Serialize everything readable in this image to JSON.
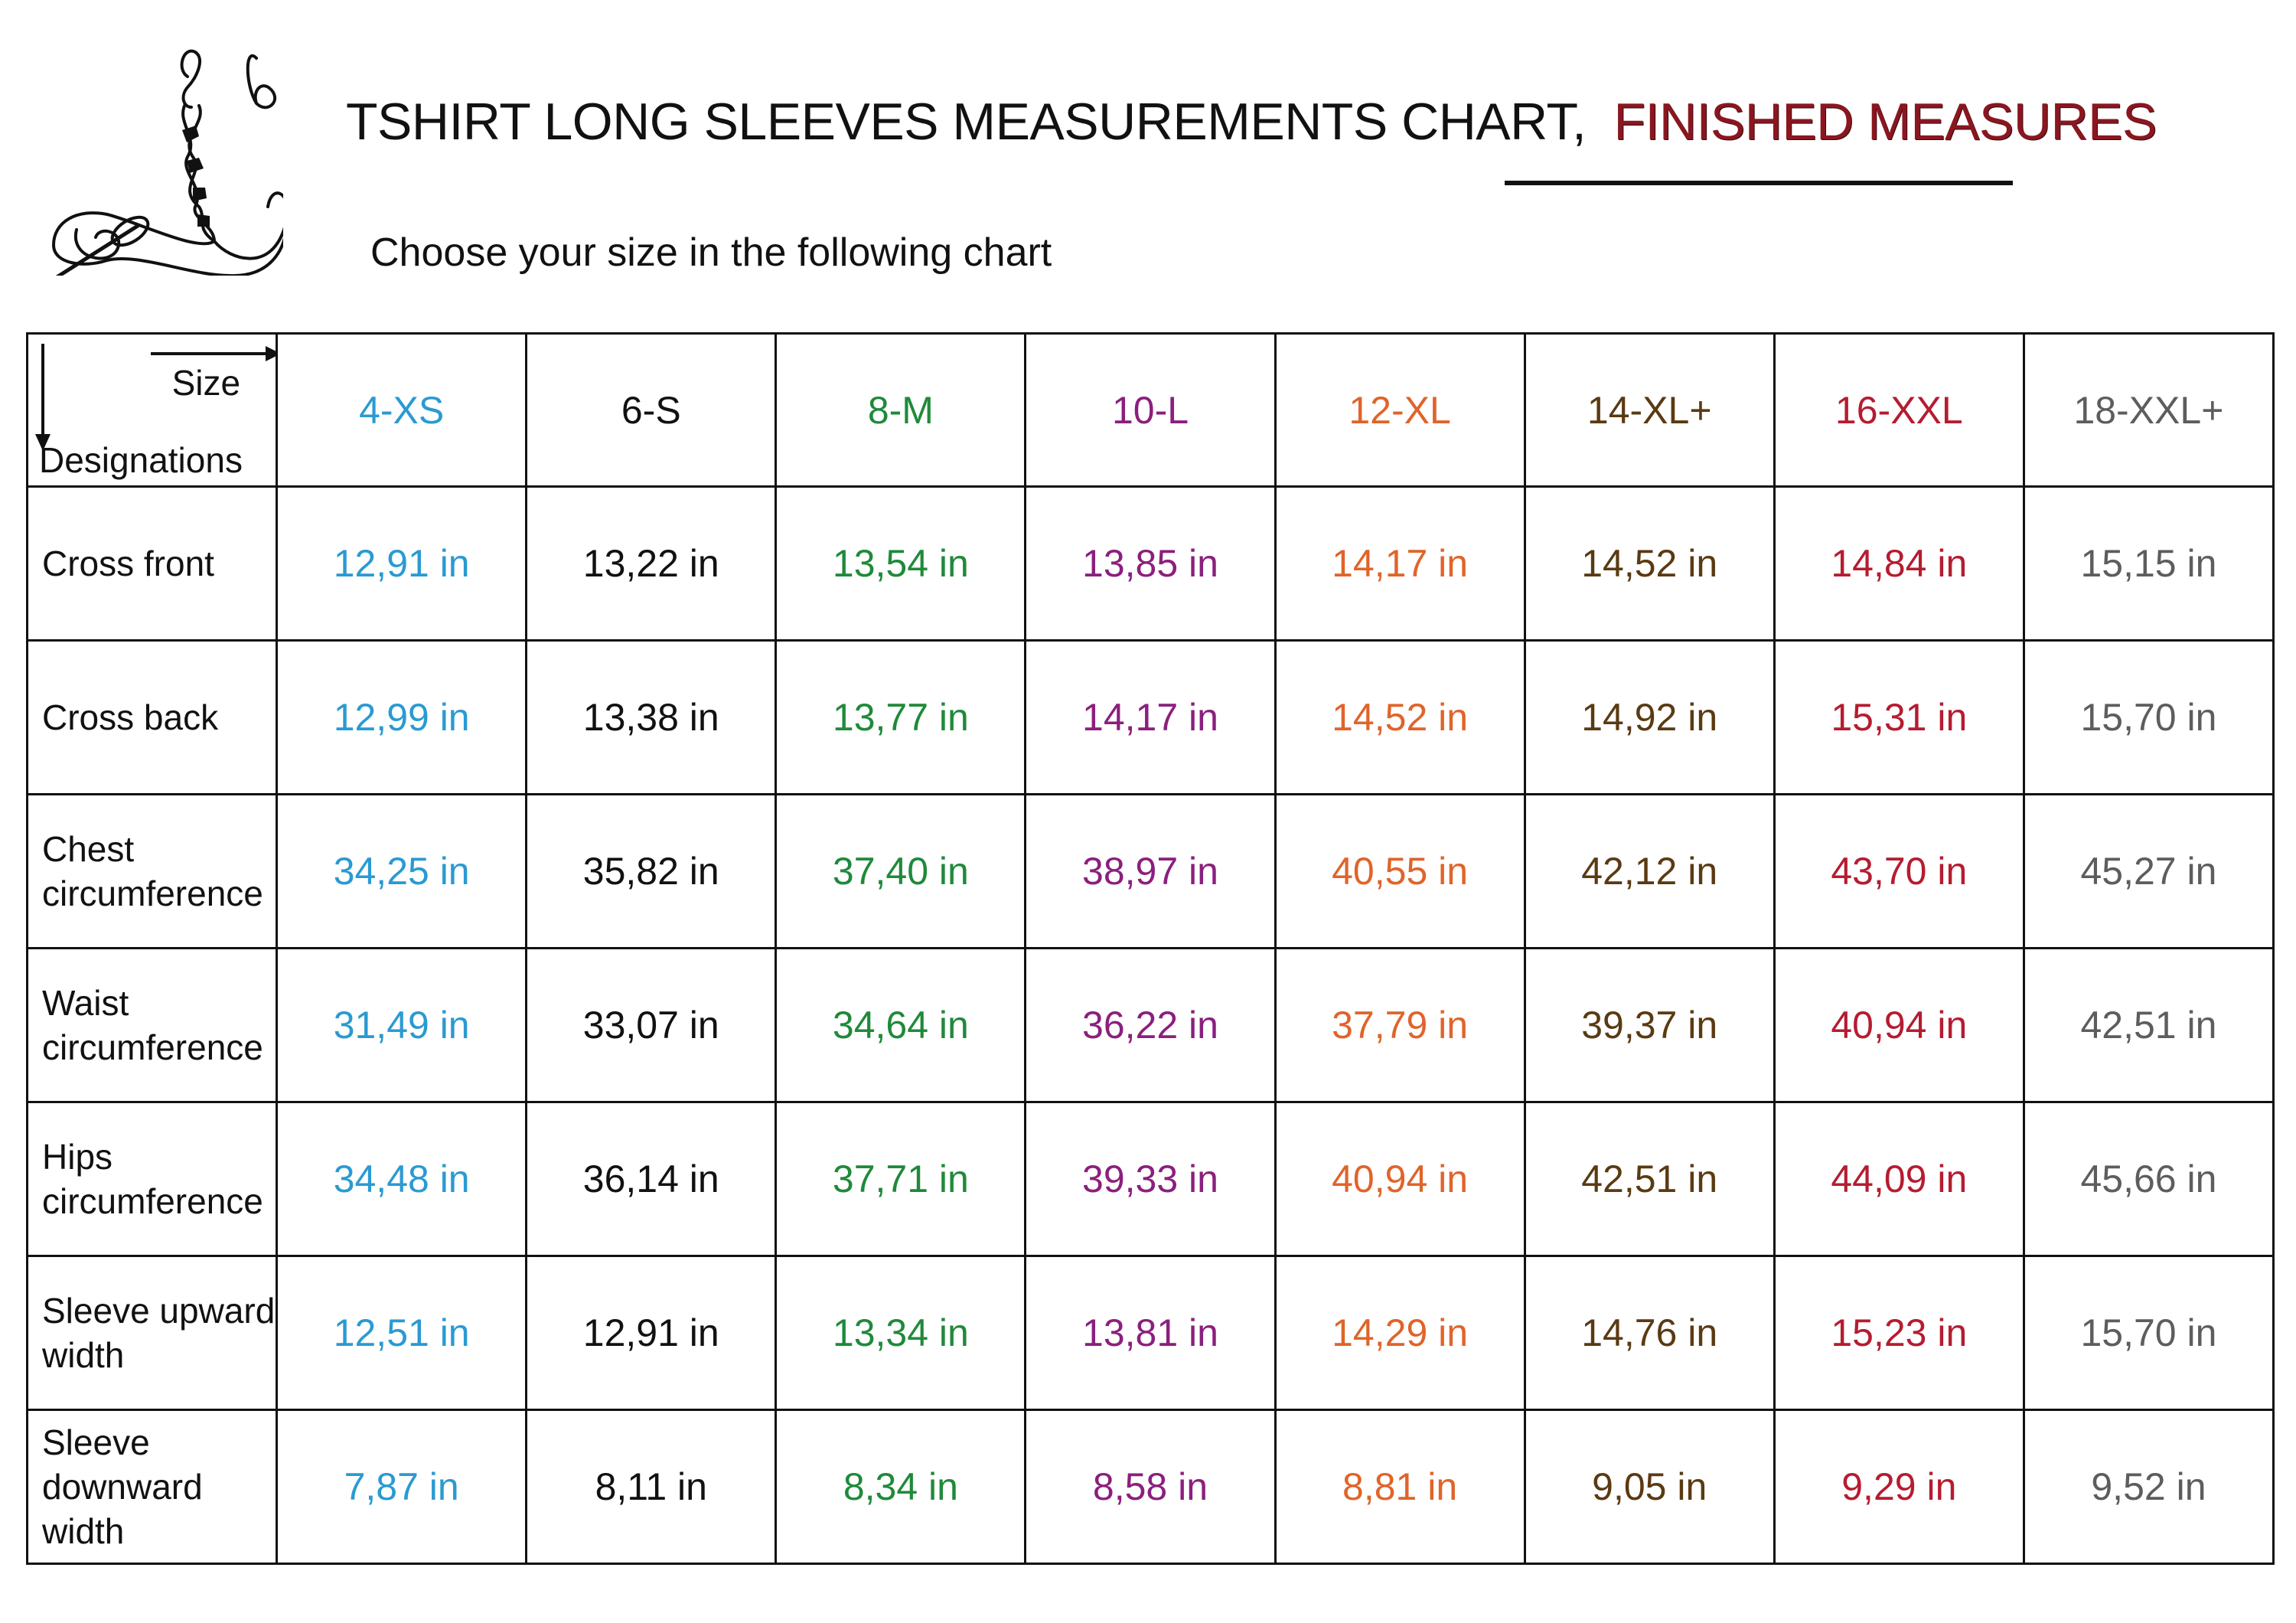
{
  "title": {
    "main": "TSHIRT LONG SLEEVES MEASUREMENTS CHART,",
    "accent": "FINISHED MEASURES"
  },
  "subtitle": "Choose your size in the following chart",
  "colors": {
    "accent_title": "#8a1620",
    "size_colors": [
      "#2a9ad2",
      "#111111",
      "#1f8a3a",
      "#8b1f7e",
      "#e0642a",
      "#5a3a12",
      "#b51c30",
      "#5d5d5d"
    ]
  },
  "table": {
    "corner": {
      "size_label": "Size",
      "designations_label": "Designations"
    },
    "sizes": [
      "4-XS",
      "6-S",
      "8-M",
      "10-L",
      "12-XL",
      "14-XL+",
      "16-XXL",
      "18-XXL+"
    ],
    "rows": [
      {
        "label_lines": [
          "Cross front"
        ],
        "values": [
          "12,91 in",
          "13,22 in",
          "13,54 in",
          "13,85 in",
          "14,17 in",
          "14,52 in",
          "14,84 in",
          "15,15 in"
        ]
      },
      {
        "label_lines": [
          "Cross back"
        ],
        "values": [
          "12,99 in",
          "13,38 in",
          "13,77 in",
          "14,17 in",
          "14,52 in",
          "14,92 in",
          "15,31 in",
          "15,70 in"
        ]
      },
      {
        "label_lines": [
          "Chest",
          "circumference"
        ],
        "values": [
          "34,25 in",
          "35,82 in",
          "37,40 in",
          "38,97 in",
          "40,55 in",
          "42,12 in",
          "43,70 in",
          "45,27 in"
        ]
      },
      {
        "label_lines": [
          "Waist",
          "circumference"
        ],
        "values": [
          "31,49 in",
          "33,07 in",
          "34,64 in",
          "36,22 in",
          "37,79 in",
          "39,37 in",
          "40,94 in",
          "42,51 in"
        ]
      },
      {
        "label_lines": [
          "Hips",
          "circumference"
        ],
        "values": [
          "34,48 in",
          "36,14 in",
          "37,71 in",
          "39,33 in",
          "40,94 in",
          "42,51 in",
          "44,09 in",
          "45,66 in"
        ]
      },
      {
        "label_lines": [
          "Sleeve upward",
          "width"
        ],
        "values": [
          "12,51 in",
          "12,91 in",
          "13,34 in",
          "13,81 in",
          "14,29 in",
          "14,76 in",
          "15,23 in",
          "15,70 in"
        ]
      },
      {
        "label_lines": [
          "Sleeve",
          "downward",
          "width"
        ],
        "values": [
          "7,87 in",
          "8,11 in",
          "8,34 in",
          "8,58 in",
          "8,81 in",
          "9,05 in",
          "9,29 in",
          "9,52 in"
        ]
      }
    ]
  },
  "icons": {
    "logo": "needle-thread-logo",
    "arrow_right": "arrow-right-icon",
    "arrow_down": "arrow-down-icon"
  }
}
